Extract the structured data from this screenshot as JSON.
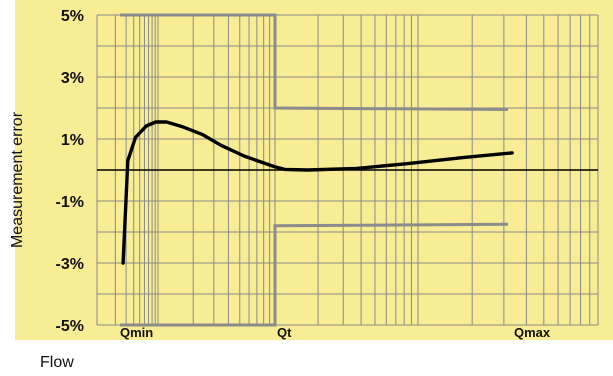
{
  "chart_data": {
    "type": "line",
    "title": "",
    "xlabel": "Flow",
    "ylabel": "Measurement error",
    "x_scale": "log",
    "ylim": [
      -5,
      5
    ],
    "y_ticks": [
      "5%",
      "3%",
      "1%",
      "-1%",
      "-3%",
      "-5%"
    ],
    "x_ticks": [
      "Qmin",
      "Qt",
      "Qmax"
    ],
    "grid": true,
    "colors": {
      "background": "#f8ec94",
      "curve": "#000000",
      "limits": "#8c8c8c",
      "grid": "#8a8a8a",
      "zero_line": "#000000"
    },
    "series": [
      {
        "points": [
          [
            0.02,
            -3.0
          ],
          [
            0.05,
            0.3
          ],
          [
            0.1,
            1.05
          ],
          [
            0.17,
            1.42
          ],
          [
            0.23,
            1.55
          ],
          [
            0.3,
            1.55
          ],
          [
            0.4,
            1.4
          ],
          [
            0.53,
            1.15
          ],
          [
            0.65,
            0.8
          ],
          [
            0.8,
            0.45
          ],
          [
            1.0,
            0.1
          ],
          [
            1.12,
            0.02
          ],
          [
            1.4,
            0.0
          ],
          [
            2.0,
            0.05
          ],
          [
            2.6,
            0.2
          ],
          [
            3.3,
            0.4
          ],
          [
            3.9,
            0.55
          ]
        ]
      },
      {
        "points": [
          [
            0.0,
            5.0
          ],
          [
            1.0,
            5.0
          ],
          [
            1.0,
            2.0
          ],
          [
            3.85,
            1.95
          ]
        ]
      },
      {
        "points": [
          [
            0.0,
            -5.0
          ],
          [
            1.0,
            -5.0
          ],
          [
            1.0,
            -1.8
          ],
          [
            3.85,
            -1.75
          ]
        ]
      }
    ]
  }
}
